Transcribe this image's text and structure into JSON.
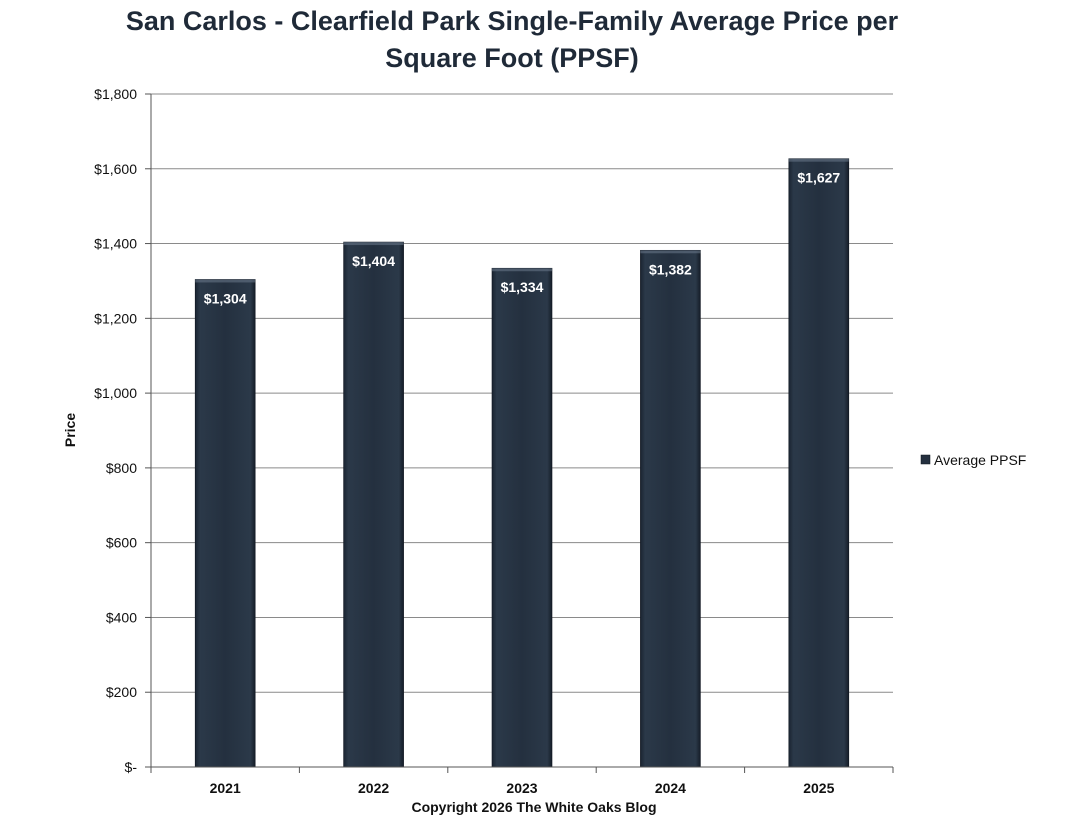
{
  "chart_data": {
    "type": "bar",
    "title": "San Carlos - Clearfield Park Single-Family Average Price per Square Foot (PPSF)",
    "title_lines": [
      "San Carlos - Clearfield Park Single-Family Average Price per",
      "Square Foot (PPSF)"
    ],
    "xlabel": "Copyright 2026 The White  Oaks Blog",
    "ylabel": "Price",
    "categories": [
      "2021",
      "2022",
      "2023",
      "2024",
      "2025"
    ],
    "series": [
      {
        "name": "Average PPSF",
        "values": [
          1304,
          1404,
          1334,
          1382,
          1627
        ],
        "color": "#24303f"
      }
    ],
    "data_labels": [
      "$1,304",
      "$1,404",
      "$1,334",
      "$1,382",
      "$1,627"
    ],
    "ylim": [
      0,
      1800
    ],
    "yticks": [
      0,
      200,
      400,
      600,
      800,
      1000,
      1200,
      1400,
      1600,
      1800
    ],
    "ytick_labels": [
      "$-",
      "$200",
      "$400",
      "$600",
      "$800",
      "$1,000",
      "$1,200",
      "$1,400",
      "$1,600",
      "$1,800"
    ],
    "grid": true,
    "legend_position": "right",
    "colors": {
      "bar": "#24303f",
      "grid": "#8a8a8a",
      "title": "#1f2a38"
    }
  }
}
